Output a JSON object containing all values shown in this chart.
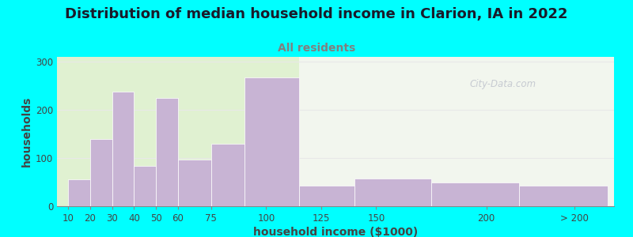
{
  "title": "Distribution of median household income in Clarion, IA in 2022",
  "subtitle": "All residents",
  "xlabel": "household income ($1000)",
  "ylabel": "households",
  "background_outer": "#00FFFF",
  "bar_color": "#c8b4d4",
  "bar_edge_color": "#ffffff",
  "grid_color": "#e8e8e8",
  "ylim": [
    0,
    310
  ],
  "yticks": [
    0,
    100,
    200,
    300
  ],
  "title_fontsize": 13,
  "subtitle_fontsize": 10,
  "axis_label_fontsize": 10,
  "tick_fontsize": 8.5,
  "watermark_text": "City-Data.com",
  "bar_lefts": [
    10,
    20,
    30,
    40,
    50,
    60,
    75,
    90,
    115,
    140,
    175,
    215
  ],
  "bar_rights": [
    20,
    30,
    40,
    50,
    60,
    75,
    90,
    115,
    140,
    175,
    215,
    255
  ],
  "values": [
    55,
    140,
    238,
    83,
    225,
    97,
    130,
    268,
    42,
    57,
    50,
    42
  ],
  "xtick_positions": [
    10,
    20,
    30,
    40,
    50,
    60,
    75,
    100,
    125,
    150,
    200,
    240
  ],
  "xtick_labels": [
    "10",
    "20",
    "30",
    "40",
    "50",
    "60",
    "75",
    "100",
    "125",
    "150",
    "200",
    "> 200"
  ],
  "xlim": [
    5,
    258
  ],
  "green_zone_end": 115,
  "subtitle_color": "#808080"
}
